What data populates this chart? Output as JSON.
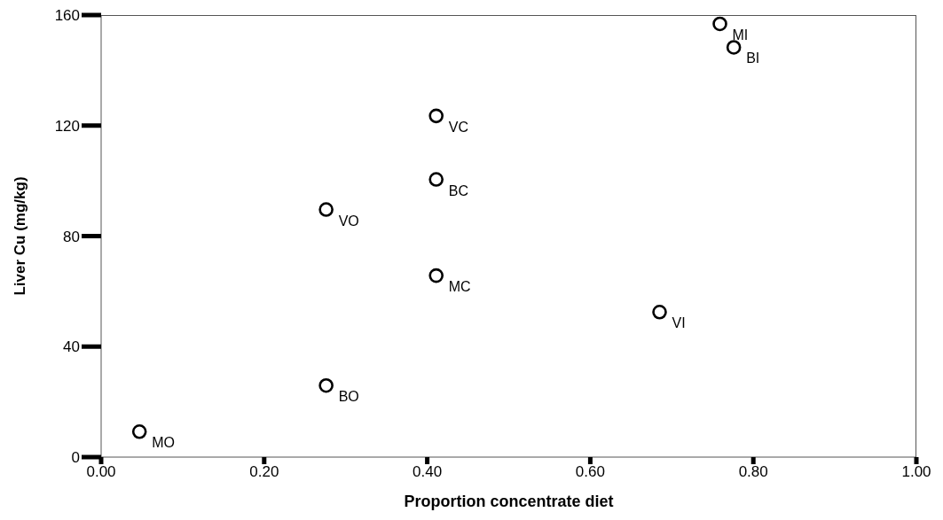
{
  "chart_data": {
    "type": "scatter",
    "xlabel": "Proportion concentrate diet",
    "ylabel": "Liver Cu (mg/kg)",
    "series": [
      {
        "color": "#000000",
        "x": [
          0.047,
          0.276,
          0.276,
          0.411,
          0.411,
          0.411,
          0.685,
          0.759,
          0.776
        ],
        "values": [
          9.2,
          25.9,
          89.6,
          123.5,
          100.5,
          65.7,
          52.5,
          156.8,
          148.3
        ]
      }
    ],
    "marker": "circle",
    "xlim": [
      0,
      1
    ],
    "xticks": [
      {
        "value": 0,
        "label": "0.00"
      },
      {
        "value": 0.2,
        "label": "0.20"
      },
      {
        "value": 0.4,
        "label": "0.40"
      },
      {
        "value": 0.6,
        "label": "0.60"
      },
      {
        "value": 0.8,
        "label": "0.80"
      },
      {
        "value": 1,
        "label": "1.00"
      }
    ],
    "ylim": [
      0,
      160
    ],
    "yticks": [
      0,
      40,
      80,
      120,
      160
    ],
    "grid": false,
    "legend": false,
    "annotations": [
      {
        "text": "MO",
        "x": 0.047,
        "y": 9.2
      },
      {
        "text": "BO",
        "x": 0.276,
        "y": 25.9
      },
      {
        "text": "VO",
        "x": 0.276,
        "y": 89.6
      },
      {
        "text": "VC",
        "x": 0.411,
        "y": 123.5
      },
      {
        "text": "BC",
        "x": 0.411,
        "y": 100.5
      },
      {
        "text": "MC",
        "x": 0.411,
        "y": 65.7
      },
      {
        "text": "VI",
        "x": 0.685,
        "y": 52.5
      },
      {
        "text": "MI",
        "x": 0.759,
        "y": 156.8
      },
      {
        "text": "BI",
        "x": 0.776,
        "y": 148.3
      }
    ]
  }
}
